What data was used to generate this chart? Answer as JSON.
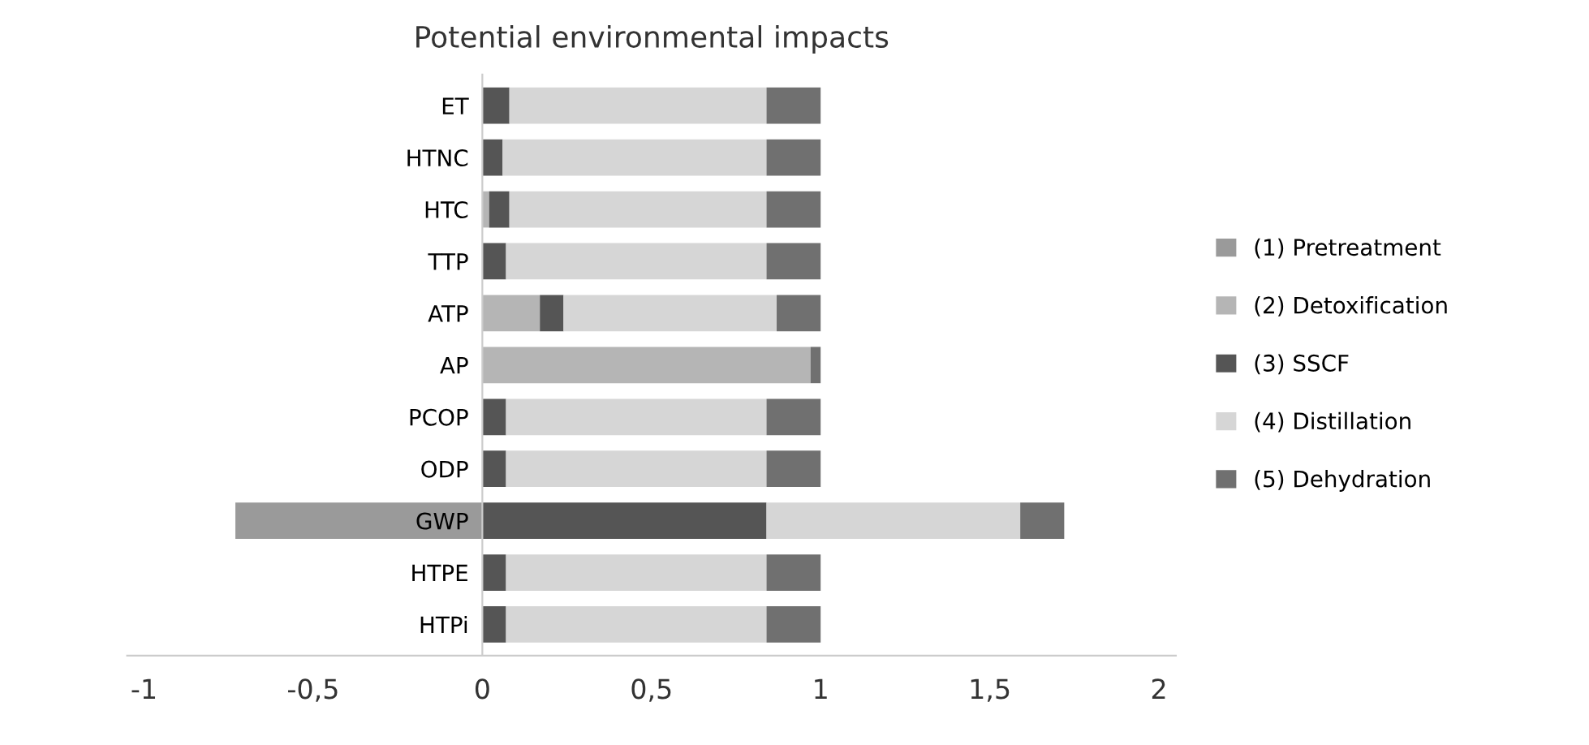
{
  "chart_data": {
    "type": "bar",
    "orientation": "horizontal",
    "stacked": true,
    "title": "Potential environmental impacts",
    "categories": [
      "ET",
      "HTNC",
      "HTC",
      "TTP",
      "ATP",
      "AP",
      "PCOP",
      "ODP",
      "GWP",
      "HTPE",
      "HTPi"
    ],
    "series": [
      {
        "name": "(1) Pretreatment",
        "color": "#9a9a9a",
        "values": [
          0,
          0,
          0,
          0,
          0,
          0,
          0,
          0,
          -0.73,
          0,
          0
        ]
      },
      {
        "name": "(2) Detoxification",
        "color": "#b5b5b5",
        "values": [
          0,
          0,
          0.02,
          0,
          0.17,
          0.97,
          0,
          0,
          0,
          0,
          0
        ]
      },
      {
        "name": "(3) SSCF",
        "color": "#555555",
        "values": [
          0.08,
          0.06,
          0.06,
          0.07,
          0.07,
          0,
          0.07,
          0.07,
          0.84,
          0.07,
          0.07
        ]
      },
      {
        "name": "(4) Distillation",
        "color": "#d6d6d6",
        "values": [
          0.76,
          0.78,
          0.76,
          0.77,
          0.63,
          0,
          0.77,
          0.77,
          0.75,
          0.77,
          0.77
        ]
      },
      {
        "name": "(5) Dehydration",
        "color": "#707070",
        "values": [
          0.16,
          0.16,
          0.16,
          0.16,
          0.13,
          0.03,
          0.16,
          0.16,
          0.13,
          0.16,
          0.16
        ]
      }
    ],
    "xlim": [
      -1.05,
      2.05
    ],
    "xticks": [
      -1,
      {
        "value": -0.5,
        "label": "-0,5"
      },
      0,
      {
        "value": 0.5,
        "label": "0,5"
      },
      1,
      {
        "value": 1.5,
        "label": "1,5"
      },
      2
    ],
    "grid": false,
    "legend": "right"
  }
}
